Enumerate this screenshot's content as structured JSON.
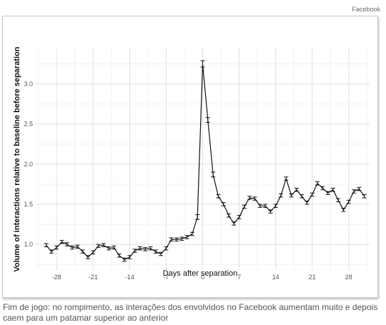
{
  "source_label": "Facebook",
  "caption": "Fim de jogo: no rompimento, as interações dos envolvidos no Facebook aumentam muito e depois caem para um patamar superior ao anterior",
  "chart_data": {
    "type": "line",
    "title": "",
    "xlabel": "Days after separation",
    "ylabel": "Volume of interactions relative to baseline before separation",
    "xlim": [
      -32,
      32
    ],
    "ylim": [
      0.68,
      3.45
    ],
    "x_ticks": [
      -28,
      -21,
      -14,
      -7,
      0,
      7,
      14,
      21,
      28
    ],
    "x_tick_labels": [
      "-28",
      "-21",
      "-14",
      "-7",
      "0",
      "7",
      "14",
      "21",
      "28"
    ],
    "y_ticks": [
      1.0,
      1.5,
      2.0,
      2.5,
      3.0
    ],
    "y_tick_labels": [
      "1.0",
      "1.5",
      "2.0",
      "2.5",
      "3.0"
    ],
    "grid": true,
    "error_bars": true,
    "series": [
      {
        "x": [
          -30,
          -29,
          -28,
          -27,
          -26,
          -25,
          -24,
          -23,
          -22,
          -21,
          -20,
          -19,
          -18,
          -17,
          -16,
          -15,
          -14,
          -13,
          -12,
          -11,
          -10,
          -9,
          -8,
          -7,
          -6,
          -5,
          -4,
          -3,
          -2,
          -1,
          0,
          1,
          2,
          3,
          4,
          5,
          6,
          7,
          8,
          9,
          10,
          11,
          12,
          13,
          14,
          15,
          16,
          17,
          18,
          19,
          20,
          21,
          22,
          23,
          24,
          25,
          26,
          27,
          28,
          29,
          30,
          31
        ],
        "y": [
          0.99,
          0.91,
          0.96,
          1.03,
          1.0,
          0.96,
          0.97,
          0.91,
          0.84,
          0.9,
          0.98,
          0.99,
          0.95,
          0.96,
          0.86,
          0.81,
          0.84,
          0.92,
          0.95,
          0.94,
          0.95,
          0.91,
          0.88,
          0.95,
          1.06,
          1.06,
          1.07,
          1.09,
          1.13,
          1.34,
          3.25,
          2.55,
          1.87,
          1.6,
          1.5,
          1.36,
          1.26,
          1.34,
          1.47,
          1.58,
          1.57,
          1.48,
          1.48,
          1.41,
          1.48,
          1.61,
          1.82,
          1.61,
          1.68,
          1.6,
          1.52,
          1.62,
          1.76,
          1.7,
          1.64,
          1.68,
          1.55,
          1.43,
          1.53,
          1.66,
          1.69,
          1.6
        ],
        "err": [
          0.02,
          0.02,
          0.02,
          0.02,
          0.02,
          0.02,
          0.02,
          0.02,
          0.02,
          0.02,
          0.02,
          0.02,
          0.02,
          0.02,
          0.02,
          0.02,
          0.02,
          0.02,
          0.02,
          0.02,
          0.02,
          0.02,
          0.02,
          0.02,
          0.02,
          0.02,
          0.02,
          0.02,
          0.02,
          0.03,
          0.04,
          0.03,
          0.03,
          0.02,
          0.02,
          0.02,
          0.02,
          0.02,
          0.02,
          0.02,
          0.02,
          0.02,
          0.02,
          0.02,
          0.02,
          0.02,
          0.02,
          0.02,
          0.02,
          0.02,
          0.02,
          0.02,
          0.02,
          0.02,
          0.02,
          0.02,
          0.02,
          0.02,
          0.02,
          0.02,
          0.02,
          0.02
        ]
      }
    ]
  }
}
